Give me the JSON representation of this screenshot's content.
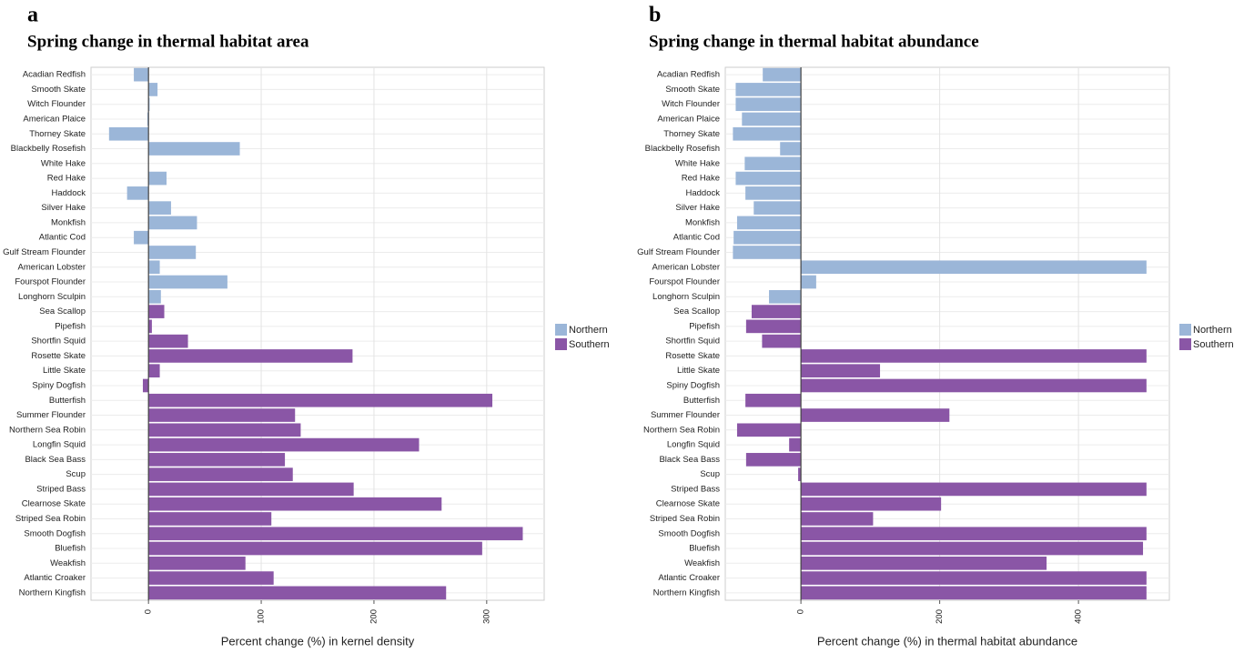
{
  "chart_data": [
    {
      "type": "barh",
      "label": "a",
      "title": "Spring change in thermal habitat area",
      "xlabel": "Percent change (%) in kernel density",
      "categories": [
        "Acadian Redfish",
        "Smooth Skate",
        "Witch Flounder",
        "American Plaice",
        "Thorney Skate",
        "Blackbelly Rosefish",
        "White Hake",
        "Red Hake",
        "Haddock",
        "Silver Hake",
        "Monkfish",
        "Atlantic Cod",
        "Gulf Stream Flounder",
        "American Lobster",
        "Fourspot Flounder",
        "Longhorn Sculpin",
        "Sea Scallop",
        "Pipefish",
        "Shortfin Squid",
        "Rosette Skate",
        "Little Skate",
        "Spiny Dogfish",
        "Butterfish",
        "Summer Flounder",
        "Northern Sea Robin",
        "Longfin Squid",
        "Black Sea Bass",
        "Scup",
        "Striped Bass",
        "Clearnose Skate",
        "Striped Sea Robin",
        "Smooth Dogfish",
        "Bluefish",
        "Weakfish",
        "Atlantic Croaker",
        "Northern Kingfish"
      ],
      "series": [
        {
          "name": "Northern",
          "color": "#9bb6d8",
          "values": [
            -13,
            8,
            1,
            -1,
            -35,
            81,
            0,
            16,
            -19,
            20,
            43,
            -13,
            42,
            10,
            70,
            11,
            null,
            null,
            null,
            null,
            null,
            null,
            null,
            null,
            null,
            null,
            null,
            null,
            null,
            null,
            null,
            null,
            null,
            null,
            null,
            null
          ]
        },
        {
          "name": "Southern",
          "color": "#8a56a6",
          "values": [
            null,
            null,
            null,
            null,
            null,
            null,
            null,
            null,
            null,
            null,
            null,
            null,
            null,
            null,
            null,
            null,
            14,
            3,
            35,
            181,
            10,
            -5,
            305,
            130,
            135,
            240,
            121,
            128,
            182,
            260,
            109,
            332,
            296,
            86,
            111,
            264
          ]
        }
      ],
      "xlim": [
        -51,
        351
      ],
      "xticks": [
        0,
        100,
        200,
        300
      ],
      "grid": true
    },
    {
      "type": "barh",
      "label": "b",
      "title": "Spring change in thermal habitat abundance",
      "xlabel": "Percent change (%) in thermal habitat abundance",
      "categories": [
        "Acadian Redfish",
        "Smooth Skate",
        "Witch Flounder",
        "American Plaice",
        "Thorney Skate",
        "Blackbelly Rosefish",
        "White Hake",
        "Red Hake",
        "Haddock",
        "Silver Hake",
        "Monkfish",
        "Atlantic Cod",
        "Gulf Stream Flounder",
        "American Lobster",
        "Fourspot Flounder",
        "Longhorn Sculpin",
        "Sea Scallop",
        "Pipefish",
        "Shortfin Squid",
        "Rosette Skate",
        "Little Skate",
        "Spiny Dogfish",
        "Butterfish",
        "Summer Flounder",
        "Northern Sea Robin",
        "Longfin Squid",
        "Black Sea Bass",
        "Scup",
        "Striped Bass",
        "Clearnose Skate",
        "Striped Sea Robin",
        "Smooth Dogfish",
        "Bluefish",
        "Weakfish",
        "Atlantic Croaker",
        "Northern Kingfish"
      ],
      "series": [
        {
          "name": "Northern",
          "color": "#9bb6d8",
          "values": [
            -55,
            -94,
            -94,
            -85,
            -98,
            -30,
            -81,
            -94,
            -80,
            -68,
            -92,
            -97,
            -98,
            498,
            22,
            -46,
            null,
            null,
            null,
            null,
            null,
            null,
            null,
            null,
            null,
            null,
            null,
            null,
            null,
            null,
            null,
            null,
            null,
            null,
            null,
            null
          ]
        },
        {
          "name": "Southern",
          "color": "#8a56a6",
          "values": [
            null,
            null,
            null,
            null,
            null,
            null,
            null,
            null,
            null,
            null,
            null,
            null,
            null,
            null,
            null,
            null,
            -71,
            -79,
            -56,
            498,
            114,
            498,
            -80,
            214,
            -92,
            -17,
            -79,
            -4,
            498,
            202,
            104,
            498,
            493,
            354,
            498,
            498
          ]
        }
      ],
      "xlim": [
        -109,
        531
      ],
      "xticks": [
        0,
        200,
        400
      ],
      "grid": true
    }
  ]
}
